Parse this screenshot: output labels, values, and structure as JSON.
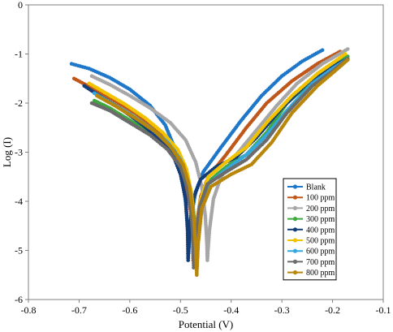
{
  "chart_data": {
    "type": "line",
    "xlabel": "Potential (V)",
    "ylabel": "Log (I)",
    "xlim": [
      -0.8,
      -0.1
    ],
    "ylim": [
      -6,
      0
    ],
    "xticks": [
      "-0.8",
      "-0.7",
      "-0.6",
      "-0.5",
      "-0.4",
      "-0.3",
      "-0.2",
      "-0.1"
    ],
    "yticks": [
      "0",
      "-1",
      "-2",
      "-3",
      "-4",
      "-5",
      "-6"
    ],
    "grid": false,
    "legend_position": "bottom-right",
    "series": [
      {
        "name": "Blank",
        "color": "#1f77c9",
        "points": [
          [
            -0.715,
            -1.2
          ],
          [
            -0.68,
            -1.3
          ],
          [
            -0.64,
            -1.48
          ],
          [
            -0.6,
            -1.72
          ],
          [
            -0.56,
            -2.05
          ],
          [
            -0.53,
            -2.45
          ],
          [
            -0.51,
            -2.95
          ],
          [
            -0.498,
            -3.45
          ],
          [
            -0.49,
            -4.0
          ],
          [
            -0.485,
            -4.6
          ],
          [
            -0.484,
            -5.05
          ],
          [
            -0.48,
            -4.4
          ],
          [
            -0.47,
            -3.8
          ],
          [
            -0.455,
            -3.4
          ],
          [
            -0.42,
            -2.9
          ],
          [
            -0.38,
            -2.35
          ],
          [
            -0.34,
            -1.85
          ],
          [
            -0.3,
            -1.45
          ],
          [
            -0.26,
            -1.15
          ],
          [
            -0.22,
            -0.92
          ]
        ]
      },
      {
        "name": "100 ppm",
        "color": "#c0571a",
        "points": [
          [
            -0.71,
            -1.5
          ],
          [
            -0.67,
            -1.72
          ],
          [
            -0.63,
            -1.95
          ],
          [
            -0.59,
            -2.2
          ],
          [
            -0.55,
            -2.5
          ],
          [
            -0.52,
            -2.85
          ],
          [
            -0.5,
            -3.25
          ],
          [
            -0.488,
            -3.7
          ],
          [
            -0.48,
            -4.2
          ],
          [
            -0.476,
            -4.75
          ],
          [
            -0.475,
            -5.2
          ],
          [
            -0.47,
            -4.6
          ],
          [
            -0.46,
            -3.9
          ],
          [
            -0.445,
            -3.5
          ],
          [
            -0.41,
            -3.05
          ],
          [
            -0.37,
            -2.5
          ],
          [
            -0.33,
            -2.0
          ],
          [
            -0.28,
            -1.55
          ],
          [
            -0.23,
            -1.2
          ],
          [
            -0.185,
            -0.95
          ]
        ]
      },
      {
        "name": "200 ppm",
        "color": "#a6a6a6",
        "points": [
          [
            -0.675,
            -1.45
          ],
          [
            -0.64,
            -1.62
          ],
          [
            -0.6,
            -1.85
          ],
          [
            -0.56,
            -2.1
          ],
          [
            -0.52,
            -2.4
          ],
          [
            -0.49,
            -2.75
          ],
          [
            -0.47,
            -3.2
          ],
          [
            -0.458,
            -3.7
          ],
          [
            -0.451,
            -4.3
          ],
          [
            -0.448,
            -4.85
          ],
          [
            -0.447,
            -5.2
          ],
          [
            -0.443,
            -4.6
          ],
          [
            -0.435,
            -3.95
          ],
          [
            -0.42,
            -3.5
          ],
          [
            -0.39,
            -3.05
          ],
          [
            -0.35,
            -2.55
          ],
          [
            -0.31,
            -2.05
          ],
          [
            -0.27,
            -1.6
          ],
          [
            -0.22,
            -1.2
          ],
          [
            -0.17,
            -0.9
          ]
        ]
      },
      {
        "name": "300 ppm",
        "color": "#3da83d",
        "points": [
          [
            -0.67,
            -1.95
          ],
          [
            -0.64,
            -2.1
          ],
          [
            -0.6,
            -2.35
          ],
          [
            -0.56,
            -2.6
          ],
          [
            -0.53,
            -2.85
          ],
          [
            -0.5,
            -3.15
          ],
          [
            -0.485,
            -3.55
          ],
          [
            -0.476,
            -4.0
          ],
          [
            -0.471,
            -4.6
          ],
          [
            -0.469,
            -5.3
          ],
          [
            -0.466,
            -4.7
          ],
          [
            -0.46,
            -4.05
          ],
          [
            -0.445,
            -3.6
          ],
          [
            -0.41,
            -3.3
          ],
          [
            -0.37,
            -3.05
          ],
          [
            -0.33,
            -2.6
          ],
          [
            -0.29,
            -2.0
          ],
          [
            -0.24,
            -1.55
          ],
          [
            -0.2,
            -1.25
          ],
          [
            -0.17,
            -1.05
          ]
        ]
      },
      {
        "name": "400 ppm",
        "color": "#143d78",
        "points": [
          [
            -0.69,
            -1.65
          ],
          [
            -0.66,
            -1.85
          ],
          [
            -0.62,
            -2.1
          ],
          [
            -0.58,
            -2.4
          ],
          [
            -0.545,
            -2.7
          ],
          [
            -0.515,
            -3.05
          ],
          [
            -0.5,
            -3.45
          ],
          [
            -0.49,
            -3.95
          ],
          [
            -0.486,
            -4.6
          ],
          [
            -0.485,
            -5.2
          ],
          [
            -0.482,
            -4.55
          ],
          [
            -0.475,
            -3.95
          ],
          [
            -0.46,
            -3.55
          ],
          [
            -0.43,
            -3.3
          ],
          [
            -0.39,
            -3.1
          ],
          [
            -0.35,
            -2.7
          ],
          [
            -0.3,
            -2.1
          ],
          [
            -0.25,
            -1.6
          ],
          [
            -0.2,
            -1.25
          ],
          [
            -0.17,
            -1.1
          ]
        ]
      },
      {
        "name": "500 ppm",
        "color": "#f2c200",
        "points": [
          [
            -0.68,
            -1.6
          ],
          [
            -0.65,
            -1.78
          ],
          [
            -0.61,
            -2.02
          ],
          [
            -0.57,
            -2.3
          ],
          [
            -0.535,
            -2.6
          ],
          [
            -0.505,
            -2.95
          ],
          [
            -0.488,
            -3.35
          ],
          [
            -0.478,
            -3.85
          ],
          [
            -0.473,
            -4.5
          ],
          [
            -0.471,
            -5.2
          ],
          [
            -0.468,
            -4.55
          ],
          [
            -0.46,
            -3.95
          ],
          [
            -0.445,
            -3.5
          ],
          [
            -0.41,
            -3.2
          ],
          [
            -0.37,
            -2.9
          ],
          [
            -0.33,
            -2.4
          ],
          [
            -0.28,
            -1.85
          ],
          [
            -0.23,
            -1.4
          ],
          [
            -0.195,
            -1.15
          ],
          [
            -0.175,
            -1.0
          ]
        ]
      },
      {
        "name": "600 ppm",
        "color": "#34a7dd",
        "points": [
          [
            -0.67,
            -1.8
          ],
          [
            -0.64,
            -1.98
          ],
          [
            -0.6,
            -2.22
          ],
          [
            -0.56,
            -2.5
          ],
          [
            -0.525,
            -2.8
          ],
          [
            -0.5,
            -3.15
          ],
          [
            -0.486,
            -3.6
          ],
          [
            -0.477,
            -4.1
          ],
          [
            -0.473,
            -4.7
          ],
          [
            -0.472,
            -5.3
          ],
          [
            -0.468,
            -4.7
          ],
          [
            -0.46,
            -4.1
          ],
          [
            -0.445,
            -3.65
          ],
          [
            -0.41,
            -3.35
          ],
          [
            -0.37,
            -3.05
          ],
          [
            -0.33,
            -2.65
          ],
          [
            -0.29,
            -2.15
          ],
          [
            -0.24,
            -1.6
          ],
          [
            -0.2,
            -1.3
          ],
          [
            -0.17,
            -1.1
          ]
        ]
      },
      {
        "name": "700 ppm",
        "color": "#6b6b6b",
        "points": [
          [
            -0.675,
            -2.0
          ],
          [
            -0.64,
            -2.15
          ],
          [
            -0.6,
            -2.4
          ],
          [
            -0.56,
            -2.65
          ],
          [
            -0.525,
            -2.95
          ],
          [
            -0.5,
            -3.3
          ],
          [
            -0.487,
            -3.7
          ],
          [
            -0.479,
            -4.2
          ],
          [
            -0.475,
            -4.8
          ],
          [
            -0.474,
            -5.35
          ],
          [
            -0.47,
            -4.75
          ],
          [
            -0.462,
            -4.1
          ],
          [
            -0.447,
            -3.65
          ],
          [
            -0.41,
            -3.4
          ],
          [
            -0.37,
            -3.15
          ],
          [
            -0.33,
            -2.75
          ],
          [
            -0.29,
            -2.2
          ],
          [
            -0.24,
            -1.65
          ],
          [
            -0.2,
            -1.35
          ],
          [
            -0.17,
            -1.1
          ]
        ]
      },
      {
        "name": "800 ppm",
        "color": "#b8860b",
        "points": [
          [
            -0.665,
            -1.85
          ],
          [
            -0.63,
            -2.05
          ],
          [
            -0.59,
            -2.3
          ],
          [
            -0.55,
            -2.58
          ],
          [
            -0.52,
            -2.88
          ],
          [
            -0.495,
            -3.25
          ],
          [
            -0.482,
            -3.7
          ],
          [
            -0.474,
            -4.3
          ],
          [
            -0.47,
            -4.95
          ],
          [
            -0.468,
            -5.5
          ],
          [
            -0.465,
            -4.85
          ],
          [
            -0.458,
            -4.15
          ],
          [
            -0.44,
            -3.7
          ],
          [
            -0.4,
            -3.45
          ],
          [
            -0.36,
            -3.25
          ],
          [
            -0.32,
            -2.8
          ],
          [
            -0.28,
            -2.2
          ],
          [
            -0.23,
            -1.65
          ],
          [
            -0.19,
            -1.3
          ],
          [
            -0.17,
            -1.12
          ]
        ]
      }
    ]
  }
}
